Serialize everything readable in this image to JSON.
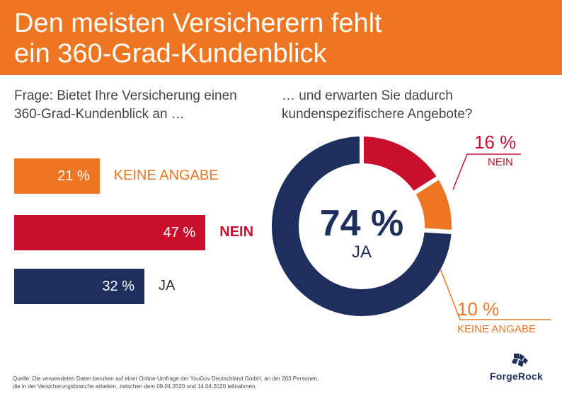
{
  "header": {
    "title_line1": "Den meisten Versicherern fehlt",
    "title_line2": "ein 360-Grad-Kundenblick"
  },
  "left": {
    "question_line1": "Frage: Bietet Ihre Versicherung einen",
    "question_line2": "360-Grad-Kundenblick an …"
  },
  "right": {
    "question_line1": "… und erwarten Sie dadurch",
    "question_line2": "kundenspezifischere Angebote?"
  },
  "colors": {
    "orange": "#ee7623",
    "red": "#c8102e",
    "navy": "#1e2f5e"
  },
  "chart_data": [
    {
      "type": "bar",
      "orientation": "horizontal",
      "categories": [
        "KEINE ANGABE",
        "NEIN",
        "JA"
      ],
      "values": [
        21,
        47,
        32
      ],
      "value_labels": [
        "21 %",
        "47 %",
        "32 %"
      ],
      "colors": [
        "#ee7623",
        "#c8102e",
        "#1e2f5e"
      ],
      "unit": "%"
    },
    {
      "type": "pie",
      "style": "donut",
      "categories": [
        "JA",
        "NEIN",
        "KEINE ANGABE"
      ],
      "values": [
        74,
        16,
        10
      ],
      "value_labels": [
        "74 %",
        "16 %",
        "10 %"
      ],
      "colors": [
        "#1e2f5e",
        "#c8102e",
        "#ee7623"
      ],
      "center_value": "74 %",
      "center_label": "JA"
    }
  ],
  "source": {
    "line1": "Quelle: Die verwendeten Daten beruhen auf einer Online-Umfrage der YouGov Deutschland GmbH, an der 203 Personen,",
    "line2": "die in der Versicherungsbranche arbeiten, zwischen dem 09.04.2020 und 14.04.2020 teilnahmen."
  },
  "logo": {
    "text": "ForgeRock",
    "icon": "forgerock-logo-icon"
  }
}
